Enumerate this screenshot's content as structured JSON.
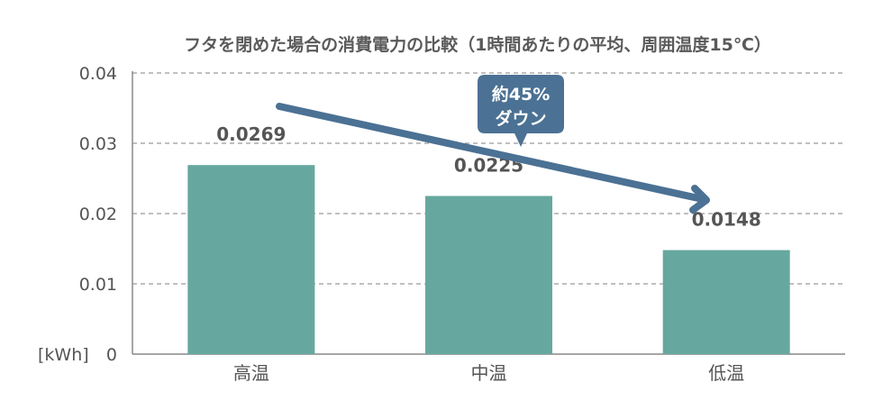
{
  "chart_data": {
    "type": "bar",
    "title": "フタを閉めた場合の消費電力の比較（1時間あたりの平均、周囲温度15℃）",
    "categories": [
      "高温",
      "中温",
      "低温"
    ],
    "values": [
      0.0269,
      0.0225,
      0.0148
    ],
    "value_labels": [
      "0.0269",
      "0.0225",
      "0.0148"
    ],
    "y_unit": "[kWh]",
    "ylim": [
      0,
      0.04
    ],
    "y_ticks": [
      {
        "value": 0,
        "label": "0"
      },
      {
        "value": 0.01,
        "label": "0.01"
      },
      {
        "value": 0.02,
        "label": "0.02"
      },
      {
        "value": 0.03,
        "label": "0.03"
      },
      {
        "value": 0.04,
        "label": "0.04"
      }
    ],
    "grid": true,
    "annotation": {
      "lines": [
        "約45%",
        "ダウン"
      ]
    },
    "colors": {
      "bar": "#66a89f",
      "arrow": "#4b7194",
      "callout": "#4b7194",
      "grid": "#9a9a9a",
      "axis": "#888888",
      "text": "#555555"
    }
  }
}
